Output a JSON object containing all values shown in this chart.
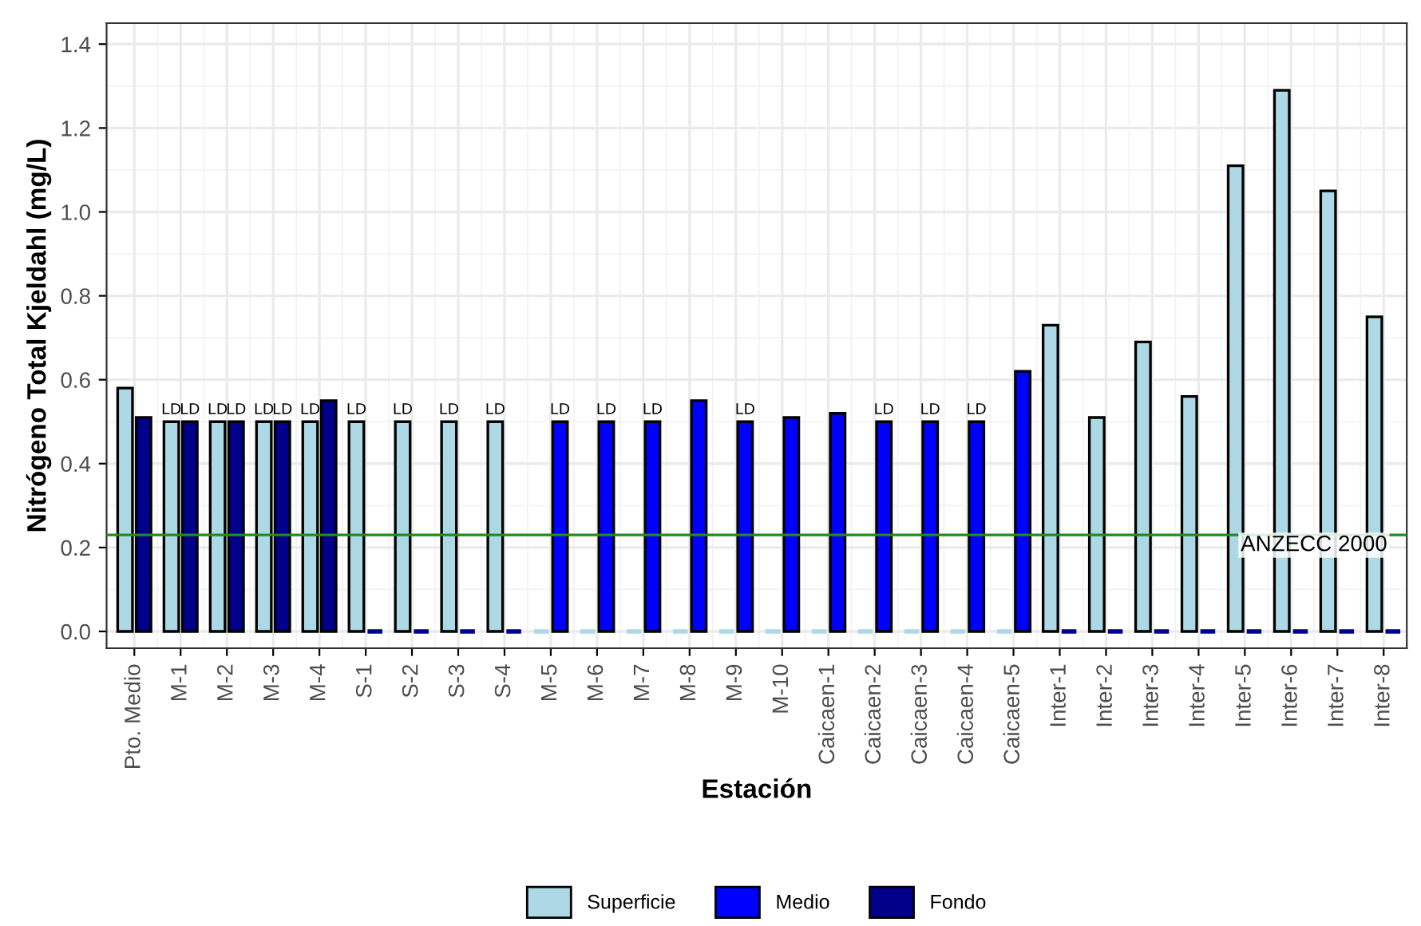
{
  "chart_data": {
    "type": "bar",
    "xlabel": "Estación",
    "ylabel": "Nitrógeno Total Kjeldahl (mg/L)",
    "categories": [
      "Pto. Medio",
      "M-1",
      "M-2",
      "M-3",
      "M-4",
      "S-1",
      "S-2",
      "S-3",
      "S-4",
      "M-5",
      "M-6",
      "M-7",
      "M-8",
      "M-9",
      "M-10",
      "Caicaen-1",
      "Caicaen-2",
      "Caicaen-3",
      "Caicaen-4",
      "Caicaen-5",
      "Inter-1",
      "Inter-2",
      "Inter-3",
      "Inter-4",
      "Inter-5",
      "Inter-6",
      "Inter-7",
      "Inter-8"
    ],
    "series": [
      {
        "name": "Superficie",
        "color": "#add8e6",
        "values": [
          0.58,
          0.5,
          0.5,
          0.5,
          0.5,
          0.5,
          0.5,
          0.5,
          0.5,
          0,
          0,
          0,
          0,
          0,
          0,
          0,
          0,
          0,
          0,
          0,
          0.73,
          0.51,
          0.69,
          0.56,
          1.11,
          1.29,
          1.05,
          0.75
        ],
        "value_labels": [
          null,
          "LD",
          "LD",
          "LD",
          "LD",
          "LD",
          "LD",
          "LD",
          "LD",
          null,
          null,
          null,
          null,
          null,
          null,
          null,
          null,
          null,
          null,
          null,
          null,
          null,
          null,
          null,
          null,
          null,
          null,
          null
        ]
      },
      {
        "name": "Medio",
        "color": "#0000ff",
        "values": [
          null,
          null,
          null,
          null,
          null,
          null,
          null,
          null,
          null,
          0.5,
          0.5,
          0.5,
          0.55,
          0.5,
          0.51,
          0.52,
          0.5,
          0.5,
          0.5,
          0.62,
          null,
          null,
          null,
          null,
          null,
          null,
          null,
          null
        ],
        "value_labels": [
          null,
          null,
          null,
          null,
          null,
          null,
          null,
          null,
          null,
          "LD",
          "LD",
          "LD",
          null,
          "LD",
          null,
          null,
          "LD",
          "LD",
          "LD",
          null,
          null,
          null,
          null,
          null,
          null,
          null,
          null,
          null
        ]
      },
      {
        "name": "Fondo",
        "color": "#00008b",
        "values": [
          0.51,
          0.5,
          0.5,
          0.5,
          0.55,
          0,
          0,
          0,
          0,
          null,
          null,
          null,
          null,
          null,
          null,
          null,
          null,
          null,
          null,
          null,
          0,
          0,
          0,
          0,
          0,
          0,
          0,
          0
        ],
        "value_labels": [
          null,
          "LD",
          "LD",
          "LD",
          null,
          null,
          null,
          null,
          null,
          null,
          null,
          null,
          null,
          null,
          null,
          null,
          null,
          null,
          null,
          null,
          null,
          null,
          null,
          null,
          null,
          null,
          null,
          null
        ]
      }
    ],
    "ylim": [
      -0.04,
      1.45
    ],
    "yticks": [
      {
        "value": 0,
        "label": "0.0"
      },
      {
        "value": 0.2,
        "label": "0.2"
      },
      {
        "value": 0.4,
        "label": "0.4"
      },
      {
        "value": 0.6,
        "label": "0.6"
      },
      {
        "value": 0.8,
        "label": "0.8"
      },
      {
        "value": 1.0,
        "label": "1.0"
      },
      {
        "value": 1.2,
        "label": "1.2"
      },
      {
        "value": 1.4,
        "label": "1.4"
      }
    ],
    "ref_lines": [
      {
        "axis": "y",
        "value": 0.23,
        "label": "ANZECC 2000",
        "color": "#228b22"
      }
    ],
    "grid": true,
    "legend": "bottom"
  }
}
